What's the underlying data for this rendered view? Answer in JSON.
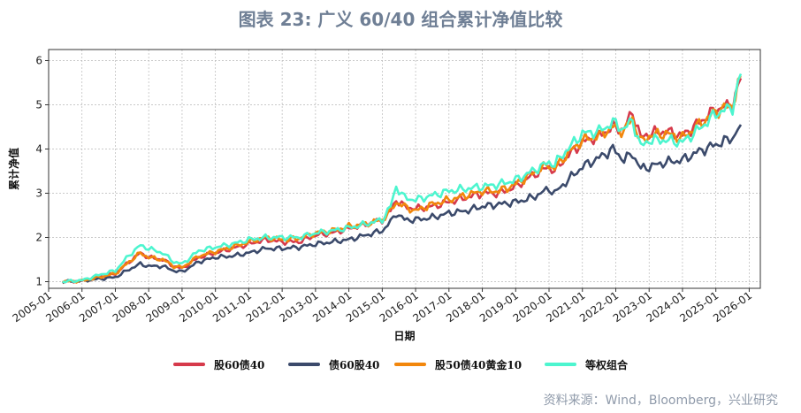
{
  "title": "图表 23: 广义 60/40 组合累计净值比较",
  "source": "资料来源：Wind，Bloomberg，兴业研究",
  "chart_data": {
    "type": "line",
    "ylabel": "累计净值",
    "xlabel": "日期",
    "ylim": [
      0.85,
      6.25
    ],
    "xlim": [
      "2005-01",
      "2026-05"
    ],
    "yticks": [
      1,
      2,
      3,
      4,
      5,
      6
    ],
    "xticks": [
      "2005-01",
      "2006-01",
      "2007-01",
      "2008-01",
      "2009-01",
      "2010-01",
      "2011-01",
      "2012-01",
      "2013-01",
      "2014-01",
      "2015-01",
      "2016-01",
      "2017-01",
      "2018-01",
      "2019-01",
      "2020-01",
      "2021-01",
      "2022-01",
      "2023-01",
      "2024-01",
      "2025-01",
      "2026-01"
    ],
    "grid": true,
    "legend_position": "bottom",
    "x": [
      "2005-06",
      "2006-01",
      "2006-07",
      "2007-01",
      "2007-06",
      "2007-10",
      "2008-01",
      "2008-06",
      "2008-10",
      "2009-01",
      "2009-07",
      "2010-01",
      "2010-07",
      "2011-01",
      "2011-07",
      "2012-01",
      "2012-07",
      "2013-01",
      "2013-07",
      "2014-01",
      "2014-07",
      "2015-01",
      "2015-04",
      "2015-06",
      "2015-09",
      "2016-01",
      "2016-07",
      "2017-01",
      "2017-07",
      "2018-01",
      "2018-07",
      "2019-01",
      "2019-07",
      "2020-01",
      "2020-03",
      "2020-07",
      "2021-01",
      "2021-07",
      "2021-12",
      "2022-04",
      "2022-07",
      "2022-10",
      "2023-01",
      "2023-07",
      "2024-01",
      "2024-07",
      "2025-01",
      "2025-07",
      "2025-10"
    ],
    "series": [
      {
        "name": "股60债40",
        "color": "#d63a4b",
        "values": [
          1.0,
          1.02,
          1.1,
          1.18,
          1.45,
          1.65,
          1.55,
          1.5,
          1.35,
          1.3,
          1.55,
          1.65,
          1.75,
          1.85,
          1.95,
          1.9,
          1.9,
          2.05,
          2.1,
          2.2,
          2.3,
          2.4,
          2.6,
          2.85,
          2.7,
          2.65,
          2.7,
          2.8,
          2.9,
          3.0,
          3.0,
          3.15,
          3.4,
          3.6,
          3.5,
          3.8,
          4.15,
          4.3,
          4.5,
          4.45,
          4.85,
          4.25,
          4.35,
          4.4,
          4.3,
          4.6,
          4.9,
          5.0,
          5.6
        ]
      },
      {
        "name": "债60股40",
        "color": "#3b4a6b",
        "values": [
          1.0,
          1.02,
          1.06,
          1.1,
          1.28,
          1.4,
          1.35,
          1.35,
          1.25,
          1.22,
          1.45,
          1.55,
          1.58,
          1.65,
          1.75,
          1.75,
          1.78,
          1.85,
          1.9,
          1.95,
          2.05,
          2.15,
          2.35,
          2.55,
          2.4,
          2.4,
          2.45,
          2.55,
          2.6,
          2.7,
          2.75,
          2.8,
          2.9,
          3.1,
          3.0,
          3.25,
          3.6,
          3.8,
          4.0,
          3.75,
          3.9,
          3.55,
          3.6,
          3.7,
          3.75,
          3.95,
          4.1,
          4.25,
          4.55
        ]
      },
      {
        "name": "股50债40黄金10",
        "color": "#f2870c",
        "values": [
          1.0,
          1.02,
          1.1,
          1.18,
          1.45,
          1.65,
          1.55,
          1.5,
          1.35,
          1.32,
          1.58,
          1.68,
          1.78,
          1.9,
          2.0,
          1.95,
          1.98,
          2.1,
          2.15,
          2.25,
          2.3,
          2.4,
          2.6,
          2.8,
          2.7,
          2.6,
          2.75,
          2.85,
          2.95,
          3.05,
          3.05,
          3.2,
          3.45,
          3.65,
          3.55,
          3.85,
          4.2,
          4.3,
          4.5,
          4.4,
          4.7,
          4.15,
          4.3,
          4.35,
          4.25,
          4.55,
          4.85,
          5.0,
          5.65
        ]
      },
      {
        "name": "等权组合",
        "color": "#4df5cf",
        "values": [
          1.0,
          1.03,
          1.15,
          1.25,
          1.6,
          1.82,
          1.75,
          1.65,
          1.45,
          1.4,
          1.7,
          1.78,
          1.85,
          1.95,
          2.0,
          2.0,
          2.0,
          2.1,
          2.15,
          2.22,
          2.3,
          2.4,
          2.7,
          3.15,
          2.9,
          2.85,
          2.95,
          3.05,
          3.1,
          3.15,
          3.2,
          3.3,
          3.5,
          3.7,
          3.65,
          3.95,
          4.35,
          4.4,
          4.6,
          4.45,
          4.65,
          4.05,
          4.2,
          4.2,
          4.15,
          4.45,
          4.8,
          4.95,
          5.7
        ]
      }
    ]
  }
}
